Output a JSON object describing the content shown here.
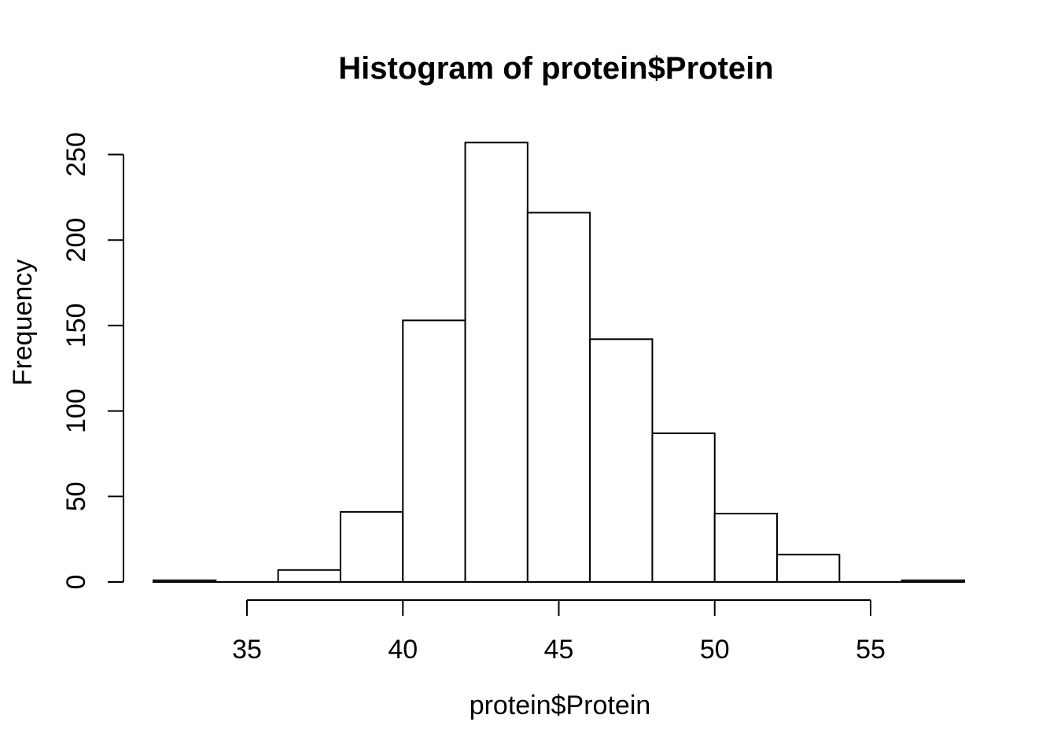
{
  "chart_data": {
    "type": "bar",
    "subtype": "histogram",
    "title": "Histogram of protein$Protein",
    "xlabel": "protein$Protein",
    "ylabel": "Frequency",
    "bin_edges": [
      32,
      34,
      36,
      38,
      40,
      42,
      44,
      46,
      48,
      50,
      52,
      54,
      56,
      58
    ],
    "frequencies": [
      1,
      0,
      7,
      41,
      153,
      257,
      216,
      142,
      87,
      40,
      16,
      0,
      1
    ],
    "x_ticks": [
      35,
      40,
      45,
      50,
      55
    ],
    "y_ticks": [
      0,
      50,
      100,
      150,
      200,
      250
    ],
    "xlim": [
      32,
      58
    ],
    "ylim": [
      0,
      250
    ],
    "grid": false,
    "legend": "none",
    "bar_fill": "#ffffff",
    "bar_stroke": "#000000",
    "axis_color": "#000000",
    "text_color": "#000000",
    "background": "#ffffff"
  }
}
